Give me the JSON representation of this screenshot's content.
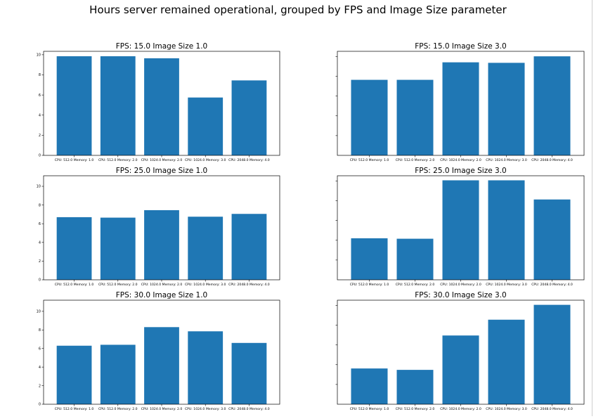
{
  "figure": {
    "suptitle": "Hours server remained operational, grouped by FPS and Image Size parameter",
    "bar_color": "#1f77b4"
  },
  "chart_data": [
    {
      "type": "bar",
      "title": "FPS: 15.0 Image Size 1.0",
      "categories": [
        "CPU: 512.0 Memory: 1.0",
        "CPU: 512.0 Memory: 2.0",
        "CPU: 1024.0 Memory: 2.0",
        "CPU: 1024.0 Memory: 3.0",
        "CPU: 2048.0 Memory: 4.0"
      ],
      "values": [
        9.85,
        9.85,
        9.65,
        5.75,
        7.45
      ],
      "ylim": [
        0,
        10.34
      ],
      "yticks": [
        0,
        2,
        4,
        6,
        8,
        10
      ]
    },
    {
      "type": "bar",
      "title": "FPS: 15.0 Image Size 3.0",
      "categories": [
        "CPU: 512.0 Memory: 1.0",
        "CPU: 512.0 Memory: 2.0",
        "CPU: 1024.0 Memory: 2.0",
        "CPU: 1024.0 Memory: 3.0",
        "CPU: 2048.0 Memory: 4.0"
      ],
      "values": [
        7.55,
        7.55,
        9.3,
        9.25,
        9.9
      ],
      "ylim": [
        0,
        10.4
      ],
      "yticks": []
    },
    {
      "type": "bar",
      "title": "FPS: 25.0 Image Size 1.0",
      "categories": [
        "CPU: 512.0 Memory: 1.0",
        "CPU: 512.0 Memory: 2.0",
        "CPU: 1024.0 Memory: 2.0",
        "CPU: 1024.0 Memory: 3.0",
        "CPU: 2048.0 Memory: 4.0"
      ],
      "values": [
        6.7,
        6.65,
        7.45,
        6.75,
        7.05
      ],
      "ylim": [
        0,
        11.13
      ],
      "yticks": [
        0,
        2,
        4,
        6,
        8,
        10
      ]
    },
    {
      "type": "bar",
      "title": "FPS: 25.0 Image Size 3.0",
      "categories": [
        "CPU: 512.0 Memory: 1.0",
        "CPU: 512.0 Memory: 2.0",
        "CPU: 1024.0 Memory: 2.0",
        "CPU: 1024.0 Memory: 3.0",
        "CPU: 2048.0 Memory: 4.0"
      ],
      "values": [
        4.55,
        4.5,
        10.9,
        10.9,
        8.8
      ],
      "ylim": [
        0,
        11.4
      ],
      "yticks": []
    },
    {
      "type": "bar",
      "title": "FPS: 30.0 Image Size 1.0",
      "categories": [
        "CPU: 512.0 Memory: 1.0",
        "CPU: 512.0 Memory: 2.0",
        "CPU: 1024.0 Memory: 2.0",
        "CPU: 1024.0 Memory: 3.0",
        "CPU: 2048.0 Memory: 4.0"
      ],
      "values": [
        6.3,
        6.4,
        8.3,
        7.85,
        6.6
      ],
      "ylim": [
        0,
        11.2
      ],
      "yticks": [
        0,
        2,
        4,
        6,
        8,
        10
      ]
    },
    {
      "type": "bar",
      "title": "FPS: 30.0 Image Size 3.0",
      "categories": [
        "CPU: 512.0 Memory: 1.0",
        "CPU: 512.0 Memory: 2.0",
        "CPU: 1024.0 Memory: 2.0",
        "CPU: 1024.0 Memory: 3.0",
        "CPU: 2048.0 Memory: 4.0"
      ],
      "values": [
        3.85,
        3.7,
        7.4,
        9.1,
        10.7
      ],
      "ylim": [
        0,
        11.2
      ],
      "yticks": []
    }
  ]
}
